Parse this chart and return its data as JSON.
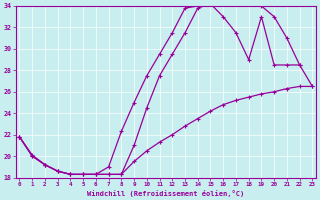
{
  "xlabel": "Windchill (Refroidissement éolien,°C)",
  "bg_color": "#c8eef0",
  "line_color": "#990099",
  "xmin": 0,
  "xmax": 23,
  "ymin": 18,
  "ymax": 34,
  "yticks": [
    18,
    20,
    22,
    24,
    26,
    28,
    30,
    32,
    34
  ],
  "xticks": [
    0,
    1,
    2,
    3,
    4,
    5,
    6,
    7,
    8,
    9,
    10,
    11,
    12,
    13,
    14,
    15,
    16,
    17,
    18,
    19,
    20,
    21,
    22,
    23
  ],
  "curve1_x": [
    0,
    1,
    2,
    3,
    4,
    5,
    6,
    7,
    8,
    9,
    10,
    11,
    12,
    13,
    14,
    15,
    16,
    17,
    18,
    19,
    20,
    21,
    22
  ],
  "curve1_y": [
    21.8,
    20.1,
    19.2,
    18.6,
    18.3,
    18.3,
    18.3,
    18.3,
    18.3,
    21.0,
    24.5,
    27.5,
    29.5,
    31.5,
    33.8,
    34.2,
    34.2,
    34.3,
    34.2,
    34.0,
    33.0,
    31.0,
    28.5
  ],
  "curve2_x": [
    0,
    1,
    2,
    3,
    4,
    5,
    6,
    7,
    8,
    9,
    10,
    11,
    12,
    13,
    14,
    15,
    16,
    17,
    18,
    19,
    20,
    21,
    22,
    23
  ],
  "curve2_y": [
    21.8,
    20.0,
    19.2,
    18.6,
    18.3,
    18.3,
    18.3,
    19.0,
    22.3,
    25.0,
    27.5,
    29.5,
    31.5,
    33.8,
    34.0,
    34.2,
    33.0,
    31.5,
    29.0,
    33.0,
    28.5,
    28.5,
    28.5,
    26.5
  ],
  "curve3_x": [
    0,
    1,
    2,
    3,
    4,
    5,
    6,
    7,
    8,
    9,
    10,
    11,
    12,
    13,
    14,
    15,
    16,
    17,
    18,
    19,
    20,
    21,
    22,
    23
  ],
  "curve3_y": [
    21.8,
    20.0,
    19.2,
    18.6,
    18.3,
    18.3,
    18.3,
    18.3,
    18.3,
    19.5,
    20.5,
    21.3,
    22.0,
    22.8,
    23.5,
    24.2,
    24.8,
    25.2,
    25.5,
    25.8,
    26.0,
    26.3,
    26.5,
    26.5
  ]
}
